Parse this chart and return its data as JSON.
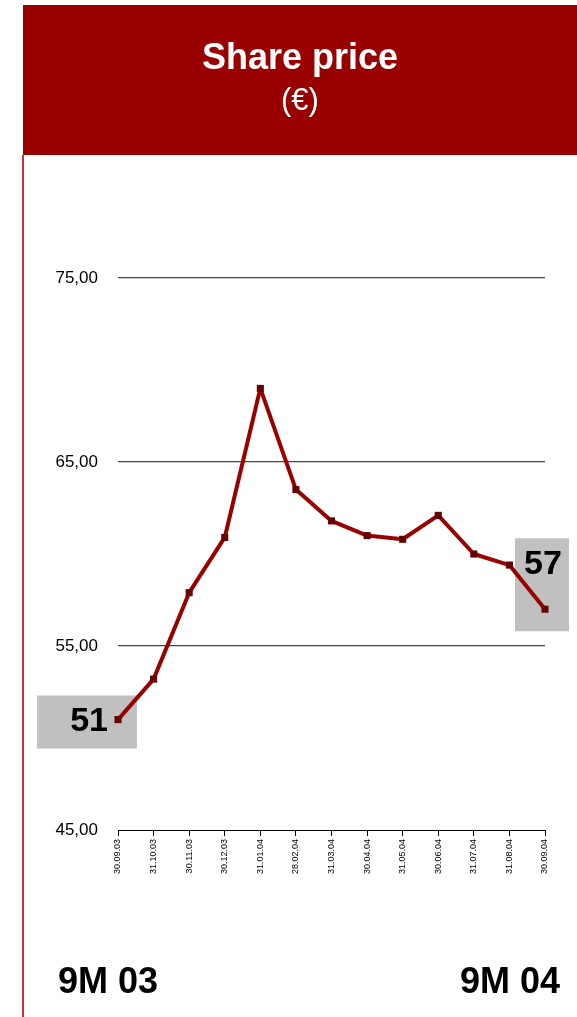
{
  "chart_data": {
    "type": "line",
    "title": "Share price",
    "subtitle": "(€)",
    "categories": [
      "30.09.03",
      "31.10.03",
      "30.11.03",
      "30.12.03",
      "31.01.04",
      "28.02.04",
      "31.03.04",
      "30.04.04",
      "31.05.04",
      "30.06.04",
      "31.07.04",
      "31.08.04",
      "30.09.04"
    ],
    "series": [
      {
        "color": "#990000",
        "values": [
          51.0,
          53.2,
          57.9,
          60.9,
          69.0,
          63.5,
          61.8,
          61.0,
          60.8,
          62.1,
          60.0,
          59.4,
          57.0
        ],
        "value_labels": [
          "51",
          null,
          null,
          null,
          null,
          null,
          null,
          null,
          null,
          null,
          null,
          null,
          "57"
        ]
      }
    ],
    "ylim": [
      45,
      75
    ],
    "yticks": [
      {
        "value": 45,
        "label": "45,00"
      },
      {
        "value": 55,
        "label": "55,00"
      },
      {
        "value": 65,
        "label": "65,00"
      },
      {
        "value": 75,
        "label": "75,00"
      }
    ],
    "grid": "y",
    "legend": false,
    "marker": "square",
    "line_style": "solid",
    "annotations": [
      "9M 03",
      "9M 04"
    ]
  }
}
